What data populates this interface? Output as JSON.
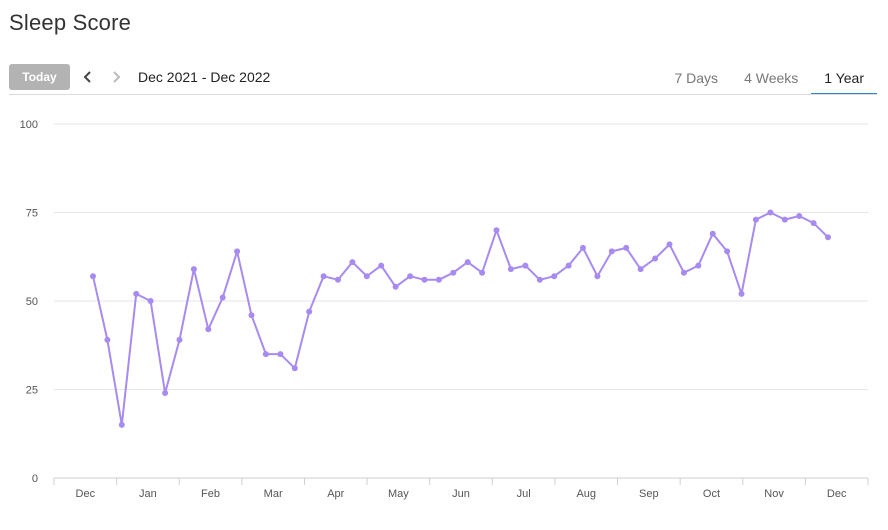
{
  "header": {
    "title": "Sleep Score"
  },
  "toolbar": {
    "today_label": "Today",
    "range_label": "Dec 2021 - Dec 2022",
    "prev_icon": "chevron-left-icon",
    "next_icon": "chevron-right-icon",
    "tabs": [
      {
        "label": "7 Days",
        "active": false
      },
      {
        "label": "4 Weeks",
        "active": false
      },
      {
        "label": "1 Year",
        "active": true
      }
    ]
  },
  "colors": {
    "line": "#a78bf0",
    "accent": "#2f86c8",
    "today_button": "#b3b3b3"
  },
  "chart_data": {
    "type": "line",
    "title": "",
    "xlabel": "",
    "ylabel": "",
    "ylim": [
      0,
      100
    ],
    "yticks": [
      0,
      25,
      50,
      75,
      100
    ],
    "month_labels": [
      "Dec",
      "Jan",
      "Feb",
      "Mar",
      "Apr",
      "May",
      "Jun",
      "Jul",
      "Aug",
      "Sep",
      "Oct",
      "Nov",
      "Dec"
    ],
    "grid": true,
    "series": [
      {
        "values": [
          57,
          39,
          15,
          52,
          50,
          24,
          39,
          59,
          42,
          51,
          64,
          46,
          35,
          35,
          31,
          47,
          57,
          56,
          61,
          57,
          60,
          54,
          57,
          56,
          56,
          58,
          61,
          58,
          70,
          59,
          60,
          56,
          57,
          60,
          65,
          57,
          64,
          65,
          59,
          62,
          66,
          58,
          60,
          69,
          64,
          52,
          73,
          75,
          73,
          74,
          72,
          68
        ]
      }
    ]
  }
}
